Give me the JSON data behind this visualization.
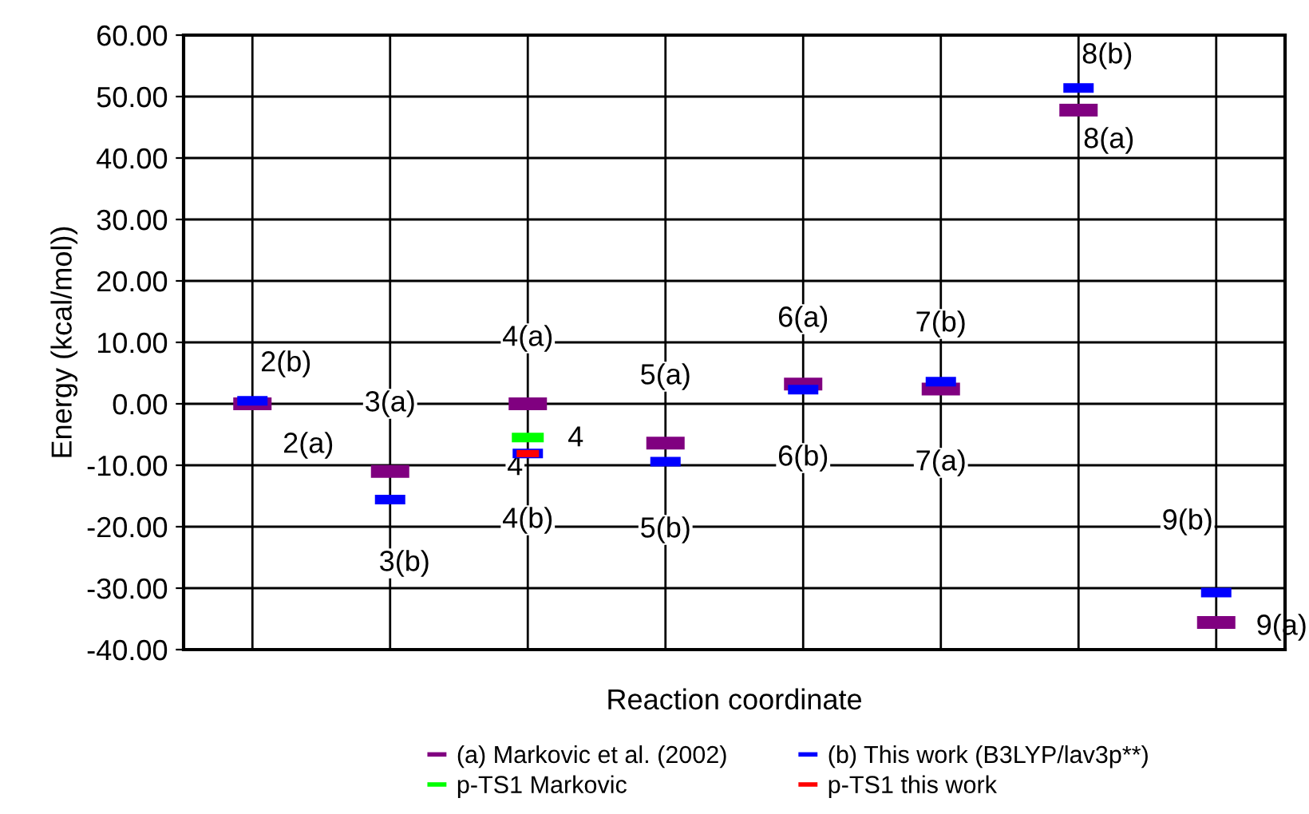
{
  "chart_data": {
    "type": "scatter",
    "xlabel": "Reaction coordinate",
    "ylabel": "Energy (kcal/mol))",
    "categories": [
      null,
      null,
      null,
      null,
      null,
      null,
      null,
      null
    ],
    "ylim": [
      -40,
      60
    ],
    "yticks": [
      {
        "value": -40,
        "label": "-40.00"
      },
      {
        "value": -30,
        "label": "-30.00"
      },
      {
        "value": -20,
        "label": "-20.00"
      },
      {
        "value": -10,
        "label": "-10.00"
      },
      {
        "value": 0,
        "label": "0.00"
      },
      {
        "value": 10,
        "label": "10.00"
      },
      {
        "value": 20,
        "label": "20.00"
      },
      {
        "value": 30,
        "label": "30.00"
      },
      {
        "value": 40,
        "label": "40.00"
      },
      {
        "value": 50,
        "label": "50.00"
      },
      {
        "value": 60,
        "label": "60.00"
      }
    ],
    "grid": true,
    "legend": "bottom",
    "series": [
      {
        "name": "(a) Markovic et al. (2002)",
        "color": "#800080",
        "values": [
          0.0,
          -11.0,
          0.0,
          -6.4,
          3.2,
          2.4,
          47.8,
          -35.6
        ]
      },
      {
        "name": "(b) This work (B3LYP/lav3p**)",
        "color": "#0000ff",
        "values": [
          0.5,
          -15.6,
          -8.1,
          -9.4,
          2.3,
          3.6,
          51.4,
          -30.7
        ]
      },
      {
        "name": "p-TS1 Markovic",
        "color": "#00ff00",
        "values": [
          null,
          null,
          -5.5,
          null,
          null,
          null,
          null,
          null
        ]
      },
      {
        "name": "p-TS1 this work",
        "color": "#ff0000",
        "values": [
          null,
          null,
          -8.1,
          null,
          null,
          null,
          null,
          null
        ]
      }
    ],
    "annotations": [
      "2(b)",
      "2(a)",
      "3(a)",
      "3(b)",
      "4(a)",
      "4",
      "4",
      "4(b)",
      "5(a)",
      "5(b)",
      "6(a)",
      "6(b)",
      "7(b)",
      "7(a)",
      "8(b)",
      "8(a)",
      "9(b)",
      "9(a)"
    ]
  }
}
